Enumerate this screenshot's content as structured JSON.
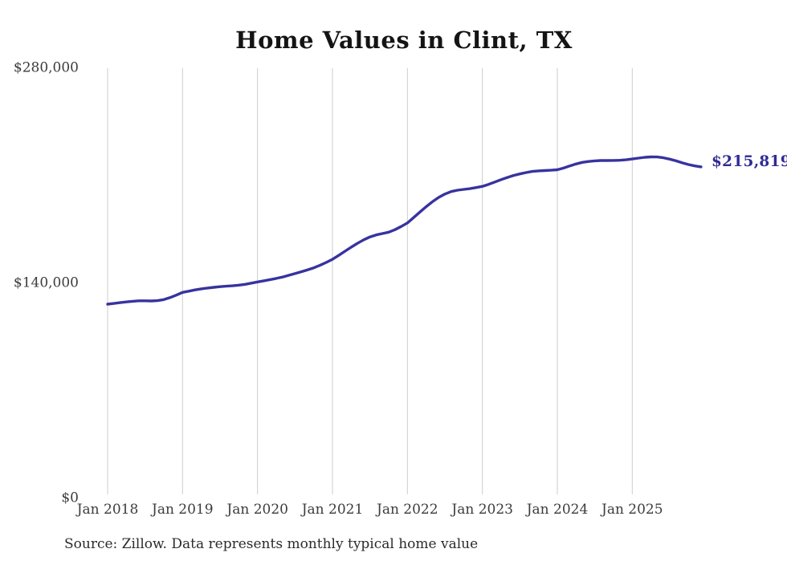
{
  "title": "Home Values in Clint, TX",
  "source_note": "Source: Zillow. Data represents monthly typical home value",
  "end_label": "$215,819",
  "colors": {
    "line": "#37339f",
    "end_label_text": "#2f2b96",
    "grid": "#cdcdcd",
    "title_text": "#141414",
    "axis_text": "#3c3c3c",
    "source_text": "#2b2b2b",
    "background": "#ffffff"
  },
  "chart_data": {
    "type": "line",
    "title": "Home Values in Clint, TX",
    "xlabel": "",
    "ylabel": "",
    "x_start": "Jan 2018",
    "x_end": "Dec 2025",
    "x_tick_labels": [
      "Jan 2018",
      "Jan 2019",
      "Jan 2020",
      "Jan 2021",
      "Jan 2022",
      "Jan 2023",
      "Jan 2024",
      "Jan 2025"
    ],
    "y_tick_labels": [
      "$280,000",
      "$140,000",
      "$0"
    ],
    "y_ticks": [
      280000,
      140000,
      0
    ],
    "ylim": [
      0,
      280000
    ],
    "grid": "vertical-only",
    "legend": "none",
    "final_value": 215819,
    "final_value_label": "$215,819",
    "series": [
      {
        "name": "Monthly typical home value",
        "start_month": "2018-01",
        "monthly_values": [
          126400,
          126900,
          127400,
          127900,
          128300,
          128600,
          128600,
          128500,
          128700,
          129400,
          130700,
          132300,
          134100,
          134900,
          135700,
          136400,
          136900,
          137400,
          137800,
          138100,
          138400,
          138800,
          139300,
          140100,
          140900,
          141600,
          142400,
          143200,
          144100,
          145200,
          146300,
          147500,
          148700,
          150100,
          151700,
          153600,
          155600,
          158200,
          160900,
          163500,
          166000,
          168300,
          170200,
          171500,
          172400,
          173300,
          174900,
          177000,
          179300,
          182800,
          186400,
          189900,
          193100,
          195900,
          198100,
          199700,
          200600,
          201100,
          201600,
          202300,
          203100,
          204400,
          205900,
          207500,
          208900,
          210200,
          211200,
          212100,
          212800,
          213200,
          213400,
          213600,
          213900,
          215000,
          216400,
          217700,
          218700,
          219300,
          219700,
          219900,
          219900,
          220000,
          220100,
          220400,
          220900,
          221500,
          222000,
          222300,
          222200,
          221700,
          220800,
          219700,
          218400,
          217300,
          216400,
          215819
        ]
      }
    ]
  }
}
